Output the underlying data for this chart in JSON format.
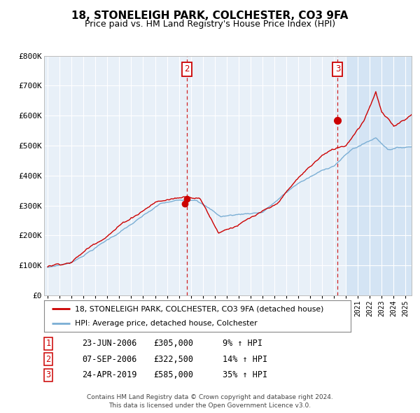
{
  "title": "18, STONELEIGH PARK, COLCHESTER, CO3 9FA",
  "subtitle": "Price paid vs. HM Land Registry's House Price Index (HPI)",
  "legend_red": "18, STONELEIGH PARK, COLCHESTER, CO3 9FA (detached house)",
  "legend_blue": "HPI: Average price, detached house, Colchester",
  "table_data": [
    [
      "1",
      "23-JUN-2006",
      "£305,000",
      "9% ↑ HPI"
    ],
    [
      "2",
      "07-SEP-2006",
      "£322,500",
      "14% ↑ HPI"
    ],
    [
      "3",
      "24-APR-2019",
      "£585,000",
      "35% ↑ HPI"
    ]
  ],
  "footer1": "Contains HM Land Registry data © Crown copyright and database right 2024.",
  "footer2": "This data is licensed under the Open Government Licence v3.0.",
  "ylim": [
    0,
    800000
  ],
  "yticks": [
    0,
    100000,
    200000,
    300000,
    400000,
    500000,
    600000,
    700000,
    800000
  ],
  "ytick_labels": [
    "£0",
    "£100K",
    "£200K",
    "£300K",
    "£400K",
    "£500K",
    "£600K",
    "£700K",
    "£800K"
  ],
  "background_chart": "#e8f0f8",
  "background_right_shade": "#d4e4f4",
  "red_color": "#cc0000",
  "blue_color": "#7aaed4",
  "grid_color": "#ffffff",
  "sale1_t": 2006.47,
  "sale1_p": 305000,
  "sale2_t": 2006.68,
  "sale2_p": 322500,
  "sale3_t": 2019.31,
  "sale3_p": 585000,
  "shade_start": 2020.0,
  "xmin": 1994.7,
  "xmax": 2025.5
}
